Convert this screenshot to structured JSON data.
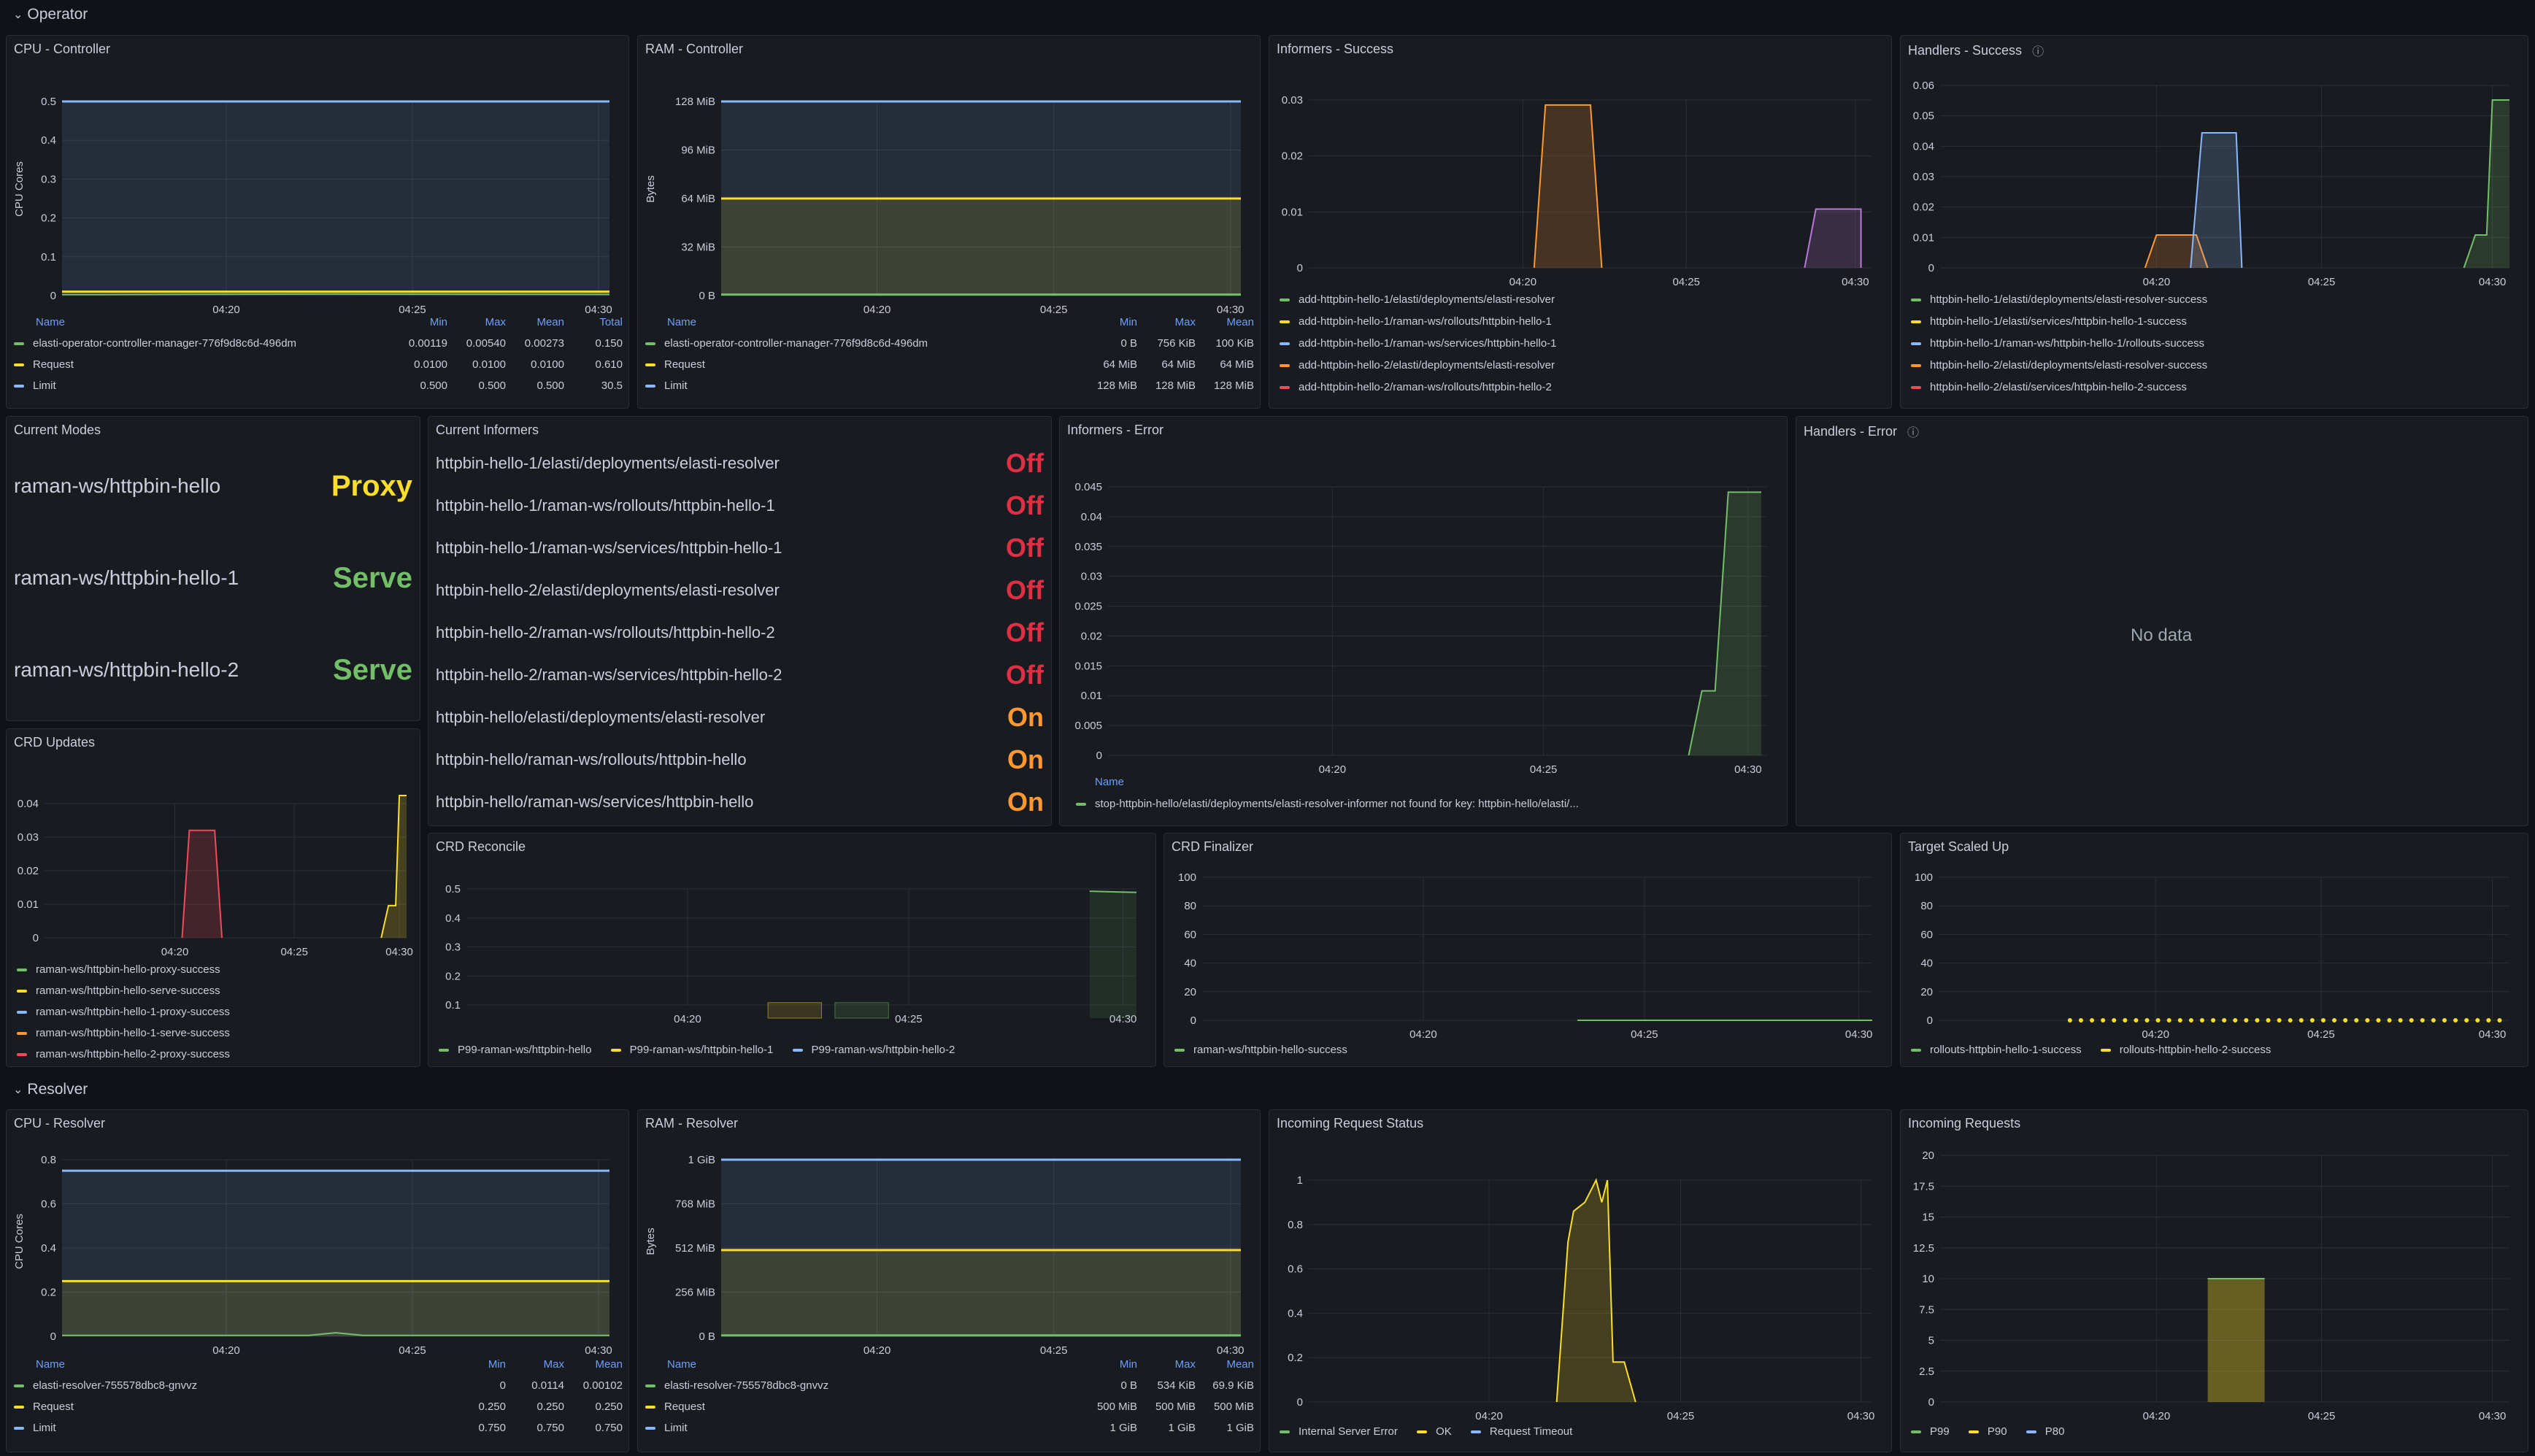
{
  "rows": {
    "operator": "Operator",
    "resolver": "Resolver"
  },
  "colors": {
    "green": "#73bf69",
    "yellow": "#fade2a",
    "blue": "#8ab8ff",
    "orange": "#ff9830",
    "red": "#f2495c",
    "purple": "#b877d9",
    "off": "#e02f44",
    "on": "#ff9830",
    "serve": "#73bf69",
    "proxy": "#fade2a"
  },
  "cpu_controller": {
    "title": "CPU - Controller",
    "chart_data": {
      "type": "line",
      "ylabel": "CPU Cores",
      "yticks": [
        "0",
        "0.1",
        "0.2",
        "0.3",
        "0.4",
        "0.5"
      ],
      "xticks": [
        "04:20",
        "04:25",
        "04:30"
      ],
      "series": [
        {
          "name": "elasti-operator-controller-manager-776f9d8c6d-496dm",
          "values": [
            0.00119,
            0.0054
          ]
        },
        {
          "name": "Request",
          "values": [
            0.01
          ]
        },
        {
          "name": "Limit",
          "values": [
            0.5
          ]
        }
      ]
    },
    "table": {
      "headers": [
        "Name",
        "Min",
        "Max",
        "Mean",
        "Total"
      ],
      "rows": [
        [
          "elasti-operator-controller-manager-776f9d8c6d-496dm",
          "0.00119",
          "0.00540",
          "0.00273",
          "0.150"
        ],
        [
          "Request",
          "0.0100",
          "0.0100",
          "0.0100",
          "0.610"
        ],
        [
          "Limit",
          "0.500",
          "0.500",
          "0.500",
          "30.5"
        ]
      ]
    }
  },
  "ram_controller": {
    "title": "RAM - Controller",
    "chart_data": {
      "type": "line",
      "ylabel": "Bytes",
      "yticks": [
        "0 B",
        "32 MiB",
        "64 MiB",
        "96 MiB",
        "128 MiB"
      ],
      "xticks": [
        "04:20",
        "04:25",
        "04:30"
      ]
    },
    "table": {
      "headers": [
        "Name",
        "Min",
        "Max",
        "Mean"
      ],
      "rows": [
        [
          "elasti-operator-controller-manager-776f9d8c6d-496dm",
          "0 B",
          "756 KiB",
          "100 KiB"
        ],
        [
          "Request",
          "64 MiB",
          "64 MiB",
          "64 MiB"
        ],
        [
          "Limit",
          "128 MiB",
          "128 MiB",
          "128 MiB"
        ]
      ]
    }
  },
  "informers_success": {
    "title": "Informers - Success",
    "chart_data": {
      "type": "area",
      "yticks": [
        "0",
        "0.01",
        "0.02",
        "0.03"
      ],
      "xticks": [
        "04:20",
        "04:25",
        "04:30"
      ]
    },
    "legend": [
      "add-httpbin-hello-1/elasti/deployments/elasti-resolver",
      "add-httpbin-hello-1/raman-ws/rollouts/httpbin-hello-1",
      "add-httpbin-hello-1/raman-ws/services/httpbin-hello-1",
      "add-httpbin-hello-2/elasti/deployments/elasti-resolver",
      "add-httpbin-hello-2/raman-ws/rollouts/httpbin-hello-2"
    ]
  },
  "handlers_success": {
    "title": "Handlers - Success",
    "chart_data": {
      "type": "area",
      "yticks": [
        "0",
        "0.01",
        "0.02",
        "0.03",
        "0.04",
        "0.05",
        "0.06"
      ],
      "xticks": [
        "04:20",
        "04:25",
        "04:30"
      ]
    },
    "legend": [
      "httpbin-hello-1/elasti/deployments/elasti-resolver-success",
      "httpbin-hello-1/elasti/services/httpbin-hello-1-success",
      "httpbin-hello-1/raman-ws/httpbin-hello-1/rollouts-success",
      "httpbin-hello-2/elasti/deployments/elasti-resolver-success",
      "httpbin-hello-2/elasti/services/httpbin-hello-2-success"
    ]
  },
  "current_modes": {
    "title": "Current Modes",
    "items": [
      {
        "name": "raman-ws/httpbin-hello",
        "value": "Proxy"
      },
      {
        "name": "raman-ws/httpbin-hello-1",
        "value": "Serve"
      },
      {
        "name": "raman-ws/httpbin-hello-2",
        "value": "Serve"
      }
    ]
  },
  "current_informers": {
    "title": "Current Informers",
    "items": [
      {
        "name": "httpbin-hello-1/elasti/deployments/elasti-resolver",
        "value": "Off"
      },
      {
        "name": "httpbin-hello-1/raman-ws/rollouts/httpbin-hello-1",
        "value": "Off"
      },
      {
        "name": "httpbin-hello-1/raman-ws/services/httpbin-hello-1",
        "value": "Off"
      },
      {
        "name": "httpbin-hello-2/elasti/deployments/elasti-resolver",
        "value": "Off"
      },
      {
        "name": "httpbin-hello-2/raman-ws/rollouts/httpbin-hello-2",
        "value": "Off"
      },
      {
        "name": "httpbin-hello-2/raman-ws/services/httpbin-hello-2",
        "value": "Off"
      },
      {
        "name": "httpbin-hello/elasti/deployments/elasti-resolver",
        "value": "On"
      },
      {
        "name": "httpbin-hello/raman-ws/rollouts/httpbin-hello",
        "value": "On"
      },
      {
        "name": "httpbin-hello/raman-ws/services/httpbin-hello",
        "value": "On"
      }
    ]
  },
  "informers_error": {
    "title": "Informers - Error",
    "chart_data": {
      "type": "area",
      "yticks": [
        "0",
        "0.005",
        "0.01",
        "0.015",
        "0.02",
        "0.025",
        "0.03",
        "0.035",
        "0.04",
        "0.045"
      ],
      "xticks": [
        "04:20",
        "04:25",
        "04:30"
      ]
    },
    "table_header": "Name",
    "legend": [
      "stop-httpbin-hello/elasti/deployments/elasti-resolver-informer not found for key: httpbin-hello/elasti/..."
    ]
  },
  "handlers_error": {
    "title": "Handlers - Error",
    "no_data": "No data"
  },
  "crd_updates": {
    "title": "CRD Updates",
    "chart_data": {
      "type": "area",
      "yticks": [
        "0",
        "0.01",
        "0.02",
        "0.03",
        "0.04"
      ],
      "xticks": [
        "04:20",
        "04:25",
        "04:30"
      ]
    },
    "legend": [
      "raman-ws/httpbin-hello-proxy-success",
      "raman-ws/httpbin-hello-serve-success",
      "raman-ws/httpbin-hello-1-proxy-success",
      "raman-ws/httpbin-hello-1-serve-success",
      "raman-ws/httpbin-hello-2-proxy-success"
    ]
  },
  "crd_reconcile": {
    "title": "CRD Reconcile",
    "chart_data": {
      "type": "bar",
      "yticks": [
        "0.1",
        "0.2",
        "0.3",
        "0.4",
        "0.5"
      ],
      "xticks": [
        "04:20",
        "04:25",
        "04:30"
      ]
    },
    "legend": [
      "P99-raman-ws/httpbin-hello",
      "P99-raman-ws/httpbin-hello-1",
      "P99-raman-ws/httpbin-hello-2"
    ]
  },
  "crd_finalizer": {
    "title": "CRD Finalizer",
    "chart_data": {
      "type": "line",
      "yticks": [
        "0",
        "20",
        "40",
        "60",
        "80",
        "100"
      ],
      "xticks": [
        "04:20",
        "04:25",
        "04:30"
      ]
    },
    "legend": [
      "raman-ws/httpbin-hello-success"
    ]
  },
  "target_scaled_up": {
    "title": "Target Scaled Up",
    "chart_data": {
      "type": "scatter",
      "yticks": [
        "0",
        "20",
        "40",
        "60",
        "80",
        "100"
      ],
      "xticks": [
        "04:20",
        "04:25",
        "04:30"
      ]
    },
    "legend": [
      "rollouts-httpbin-hello-1-success",
      "rollouts-httpbin-hello-2-success"
    ]
  },
  "cpu_resolver": {
    "title": "CPU - Resolver",
    "chart_data": {
      "type": "line",
      "ylabel": "CPU Cores",
      "yticks": [
        "0",
        "0.2",
        "0.4",
        "0.6",
        "0.8"
      ],
      "xticks": [
        "04:20",
        "04:25",
        "04:30"
      ]
    },
    "table": {
      "headers": [
        "Name",
        "Min",
        "Max",
        "Mean"
      ],
      "rows": [
        [
          "elasti-resolver-755578dbc8-gnvvz",
          "0",
          "0.0114",
          "0.00102"
        ],
        [
          "Request",
          "0.250",
          "0.250",
          "0.250"
        ],
        [
          "Limit",
          "0.750",
          "0.750",
          "0.750"
        ]
      ]
    }
  },
  "ram_resolver": {
    "title": "RAM - Resolver",
    "chart_data": {
      "type": "line",
      "ylabel": "Bytes",
      "yticks": [
        "0 B",
        "256 MiB",
        "512 MiB",
        "768 MiB",
        "1 GiB"
      ],
      "xticks": [
        "04:20",
        "04:25",
        "04:30"
      ]
    },
    "table": {
      "headers": [
        "Name",
        "Min",
        "Max",
        "Mean"
      ],
      "rows": [
        [
          "elasti-resolver-755578dbc8-gnvvz",
          "0 B",
          "534 KiB",
          "69.9 KiB"
        ],
        [
          "Request",
          "500 MiB",
          "500 MiB",
          "500 MiB"
        ],
        [
          "Limit",
          "1 GiB",
          "1 GiB",
          "1 GiB"
        ]
      ]
    }
  },
  "incoming_request_status": {
    "title": "Incoming Request Status",
    "chart_data": {
      "type": "area",
      "yticks": [
        "0",
        "0.2",
        "0.4",
        "0.6",
        "0.8",
        "1"
      ],
      "xticks": [
        "04:20",
        "04:25",
        "04:30"
      ]
    },
    "legend": [
      "Internal Server Error",
      "OK",
      "Request Timeout"
    ]
  },
  "incoming_requests": {
    "title": "Incoming Requests",
    "chart_data": {
      "type": "bar",
      "yticks": [
        "0",
        "2.5",
        "5",
        "7.5",
        "10",
        "12.5",
        "15",
        "17.5",
        "20"
      ],
      "xticks": [
        "04:20",
        "04:25",
        "04:30"
      ]
    },
    "legend": [
      "P99",
      "P90",
      "P80"
    ]
  }
}
